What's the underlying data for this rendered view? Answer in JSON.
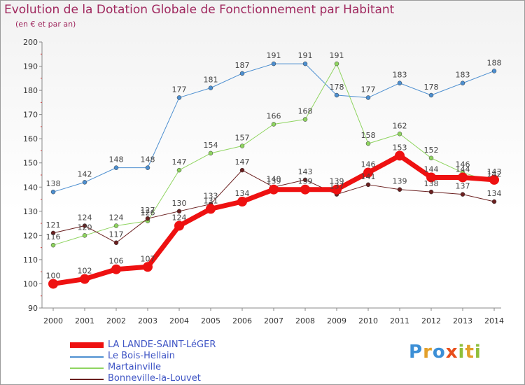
{
  "title": "Evolution de la Dotation Globale de Fonctionnement par Habitant",
  "subtitle": "(en € et par an)",
  "logo": "Proxiti",
  "logo_letters": [
    {
      "ch": "P",
      "color": "#3c8fd6"
    },
    {
      "ch": "r",
      "color": "#e3a02b"
    },
    {
      "ch": "o",
      "color": "#3c8fd6"
    },
    {
      "ch": "x",
      "color": "#e84e1b"
    },
    {
      "ch": "i",
      "color": "#8fbf3a"
    },
    {
      "ch": "t",
      "color": "#e3a02b"
    },
    {
      "ch": "i",
      "color": "#8fbf3a"
    }
  ],
  "chart_data": {
    "type": "line",
    "title": "Evolution de la Dotation Globale de Fonctionnement par Habitant",
    "subtitle": "(en € et par an)",
    "xlabel": "",
    "ylabel": "",
    "x": [
      "2000",
      "2001",
      "2002",
      "2003",
      "2004",
      "2005",
      "2006",
      "2007",
      "2008",
      "2009",
      "2010",
      "2011",
      "2012",
      "2013",
      "2014"
    ],
    "ylim": [
      90,
      200
    ],
    "yticks": [
      90,
      100,
      110,
      120,
      130,
      140,
      150,
      160,
      170,
      180,
      190,
      200
    ],
    "grid": false,
    "legend": "bottom-left",
    "series": [
      {
        "name": "LA LANDE-SAINT-LéGER",
        "color": "#ee1111",
        "width": 7,
        "marker": 7,
        "values": [
          100,
          102,
          106,
          107,
          124,
          131,
          134,
          139,
          139,
          139,
          146,
          153,
          144,
          144,
          143
        ]
      },
      {
        "name": "Le Bois-Hellain",
        "color": "#4d8fd0",
        "width": 1,
        "marker": 3,
        "values": [
          138,
          142,
          148,
          148,
          177,
          181,
          187,
          191,
          191,
          178,
          177,
          183,
          178,
          183,
          188
        ]
      },
      {
        "name": "Martainville",
        "color": "#8fd460",
        "width": 1,
        "marker": 3,
        "values": [
          116,
          120,
          124,
          126,
          147,
          154,
          157,
          166,
          168,
          191,
          158,
          162,
          152,
          146,
          142
        ]
      },
      {
        "name": "Bonneville-la-Louvet",
        "color": "#6b2020",
        "width": 1,
        "marker": 3,
        "values": [
          121,
          124,
          117,
          127,
          130,
          133,
          147,
          140,
          143,
          137,
          141,
          139,
          138,
          137,
          134
        ]
      }
    ]
  }
}
